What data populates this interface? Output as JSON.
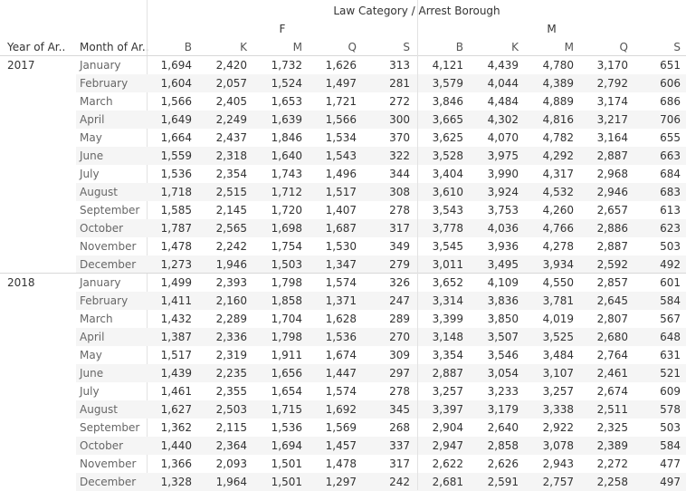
{
  "header": {
    "title": "Law Category / Arrest Borough",
    "row_label_year": "Year of Ar..",
    "row_label_month": "Month of Ar..",
    "groups": [
      "F",
      "M"
    ],
    "columns": [
      "B",
      "K",
      "M",
      "Q",
      "S",
      "B",
      "K",
      "M",
      "Q",
      "S"
    ]
  },
  "chart_data": {
    "type": "table",
    "title": "Law Category / Arrest Borough",
    "row_dimensions": [
      "Year of Ar..",
      "Month of Ar.."
    ],
    "column_groups": [
      "F",
      "M"
    ],
    "boroughs": [
      "B",
      "K",
      "M",
      "Q",
      "S"
    ],
    "years": [
      {
        "year": "2017",
        "rows": [
          {
            "month": "January",
            "values": [
              "1,694",
              "2,420",
              "1,732",
              "1,626",
              "313",
              "4,121",
              "4,439",
              "4,780",
              "3,170",
              "651"
            ]
          },
          {
            "month": "February",
            "values": [
              "1,604",
              "2,057",
              "1,524",
              "1,497",
              "281",
              "3,579",
              "4,044",
              "4,389",
              "2,792",
              "606"
            ]
          },
          {
            "month": "March",
            "values": [
              "1,566",
              "2,405",
              "1,653",
              "1,721",
              "272",
              "3,846",
              "4,484",
              "4,889",
              "3,174",
              "686"
            ]
          },
          {
            "month": "April",
            "values": [
              "1,649",
              "2,249",
              "1,639",
              "1,566",
              "300",
              "3,665",
              "4,302",
              "4,816",
              "3,217",
              "706"
            ]
          },
          {
            "month": "May",
            "values": [
              "1,664",
              "2,437",
              "1,846",
              "1,534",
              "370",
              "3,625",
              "4,070",
              "4,782",
              "3,164",
              "655"
            ]
          },
          {
            "month": "June",
            "values": [
              "1,559",
              "2,318",
              "1,640",
              "1,543",
              "322",
              "3,528",
              "3,975",
              "4,292",
              "2,887",
              "663"
            ]
          },
          {
            "month": "July",
            "values": [
              "1,536",
              "2,354",
              "1,743",
              "1,496",
              "344",
              "3,404",
              "3,990",
              "4,317",
              "2,968",
              "684"
            ]
          },
          {
            "month": "August",
            "values": [
              "1,718",
              "2,515",
              "1,712",
              "1,517",
              "308",
              "3,610",
              "3,924",
              "4,532",
              "2,946",
              "683"
            ]
          },
          {
            "month": "September",
            "values": [
              "1,585",
              "2,145",
              "1,720",
              "1,407",
              "278",
              "3,543",
              "3,753",
              "4,260",
              "2,657",
              "613"
            ]
          },
          {
            "month": "October",
            "values": [
              "1,787",
              "2,565",
              "1,698",
              "1,687",
              "317",
              "3,778",
              "4,036",
              "4,766",
              "2,886",
              "623"
            ]
          },
          {
            "month": "November",
            "values": [
              "1,478",
              "2,242",
              "1,754",
              "1,530",
              "349",
              "3,545",
              "3,936",
              "4,278",
              "2,887",
              "503"
            ]
          },
          {
            "month": "December",
            "values": [
              "1,273",
              "1,946",
              "1,503",
              "1,347",
              "279",
              "3,011",
              "3,495",
              "3,934",
              "2,592",
              "492"
            ]
          }
        ]
      },
      {
        "year": "2018",
        "rows": [
          {
            "month": "January",
            "values": [
              "1,499",
              "2,393",
              "1,798",
              "1,574",
              "326",
              "3,652",
              "4,109",
              "4,550",
              "2,857",
              "601"
            ]
          },
          {
            "month": "February",
            "values": [
              "1,411",
              "2,160",
              "1,858",
              "1,371",
              "247",
              "3,314",
              "3,836",
              "3,781",
              "2,645",
              "584"
            ]
          },
          {
            "month": "March",
            "values": [
              "1,432",
              "2,289",
              "1,704",
              "1,628",
              "289",
              "3,399",
              "3,850",
              "4,019",
              "2,807",
              "567"
            ]
          },
          {
            "month": "April",
            "values": [
              "1,387",
              "2,336",
              "1,798",
              "1,536",
              "270",
              "3,148",
              "3,507",
              "3,525",
              "2,680",
              "648"
            ]
          },
          {
            "month": "May",
            "values": [
              "1,517",
              "2,319",
              "1,911",
              "1,674",
              "309",
              "3,354",
              "3,546",
              "3,484",
              "2,764",
              "631"
            ]
          },
          {
            "month": "June",
            "values": [
              "1,439",
              "2,235",
              "1,656",
              "1,447",
              "297",
              "2,887",
              "3,054",
              "3,107",
              "2,461",
              "521"
            ]
          },
          {
            "month": "July",
            "values": [
              "1,461",
              "2,355",
              "1,654",
              "1,574",
              "278",
              "3,257",
              "3,233",
              "3,257",
              "2,674",
              "609"
            ]
          },
          {
            "month": "August",
            "values": [
              "1,627",
              "2,503",
              "1,715",
              "1,692",
              "345",
              "3,397",
              "3,179",
              "3,338",
              "2,511",
              "578"
            ]
          },
          {
            "month": "September",
            "values": [
              "1,362",
              "2,115",
              "1,536",
              "1,569",
              "268",
              "2,904",
              "2,640",
              "2,922",
              "2,325",
              "503"
            ]
          },
          {
            "month": "October",
            "values": [
              "1,440",
              "2,364",
              "1,694",
              "1,457",
              "337",
              "2,947",
              "2,858",
              "3,078",
              "2,389",
              "584"
            ]
          },
          {
            "month": "November",
            "values": [
              "1,366",
              "2,093",
              "1,501",
              "1,478",
              "317",
              "2,622",
              "2,626",
              "2,943",
              "2,272",
              "477"
            ]
          },
          {
            "month": "December",
            "values": [
              "1,328",
              "1,964",
              "1,501",
              "1,297",
              "242",
              "2,681",
              "2,591",
              "2,757",
              "2,258",
              "497"
            ]
          }
        ]
      }
    ]
  }
}
